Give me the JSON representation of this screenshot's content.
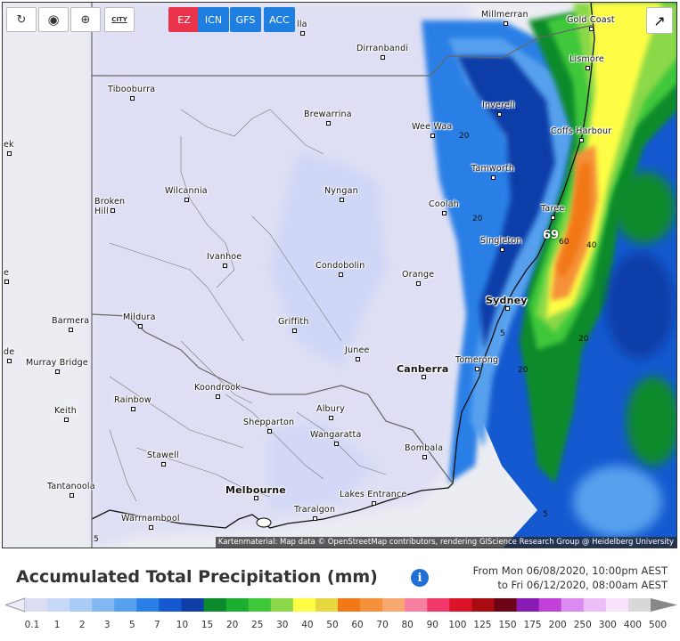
{
  "toolbar": {
    "refresh_icon": "refresh-icon",
    "location_icon": "location-pin-icon",
    "zoom_icon": "zoom-icon",
    "city_toggle_label": "CITY",
    "models": [
      {
        "label": "EZ",
        "color": "#e8334a"
      },
      {
        "label": "ICN",
        "color": "#1e7fe0"
      },
      {
        "label": "GFS",
        "color": "#1e7fe0"
      },
      {
        "label": "ACC",
        "color": "#1e7fe0"
      }
    ],
    "share_icon": "share-icon"
  },
  "map": {
    "cities": [
      {
        "name": "Millmerran"
      },
      {
        "name": "Gold Coast"
      },
      {
        "name": "Dirranbandi"
      },
      {
        "name": "Lismore"
      },
      {
        "name": "Tibooburra"
      },
      {
        "name": "Inverell"
      },
      {
        "name": "Brewarrina"
      },
      {
        "name": "Wee Waa"
      },
      {
        "name": "Coffs Harbour"
      },
      {
        "name": "Tamworth"
      },
      {
        "name": "Wilcannia"
      },
      {
        "name": "Nyngan"
      },
      {
        "name": "Broken Hill"
      },
      {
        "name": "Coolah"
      },
      {
        "name": "Taree"
      },
      {
        "name": "Singleton"
      },
      {
        "name": "Ivanhoe"
      },
      {
        "name": "Condobolin"
      },
      {
        "name": "Orange"
      },
      {
        "name": "Sydney"
      },
      {
        "name": "Mildura"
      },
      {
        "name": "Barmera"
      },
      {
        "name": "Griffith"
      },
      {
        "name": "Junee"
      },
      {
        "name": "Murray Bridge"
      },
      {
        "name": "Tomerong"
      },
      {
        "name": "Canberra"
      },
      {
        "name": "Koondrook"
      },
      {
        "name": "Rainbow"
      },
      {
        "name": "Keith"
      },
      {
        "name": "Albury"
      },
      {
        "name": "Shepparton"
      },
      {
        "name": "Wangaratta"
      },
      {
        "name": "Bombala"
      },
      {
        "name": "Stawell"
      },
      {
        "name": "Tantanoola"
      },
      {
        "name": "Melbourne"
      },
      {
        "name": "Lakes Entrance"
      },
      {
        "name": "Traralgon"
      },
      {
        "name": "Warrnambool"
      },
      {
        "name": "ek"
      },
      {
        "name": "de"
      },
      {
        "name": "e"
      },
      {
        "name": "lla"
      }
    ],
    "contours": [
      "20",
      "20",
      "40",
      "60",
      "20",
      "20",
      "5",
      "5",
      "5",
      "69"
    ],
    "credit": "Kartenmaterial: Map data © OpenStreetMap contributors, rendering GIScience Research Group @ Heidelberg University"
  },
  "legend": {
    "title": "Accumulated Total Precipitation (mm)",
    "date_from": "From Mon 06/08/2020, 10:00pm AEST",
    "date_to": "to Fri 06/12/2020, 08:00am AEST",
    "colors": [
      "#dcdcf2",
      "#c8d8f8",
      "#a8ccf6",
      "#82b8f2",
      "#56a0ee",
      "#2c7fe6",
      "#1459cf",
      "#0d3ea8",
      "#0a8a2a",
      "#1cae2e",
      "#3fc83a",
      "#8bd84a",
      "#fdfd44",
      "#e8d840",
      "#f27818",
      "#f5913a",
      "#f9a870",
      "#f87fa0",
      "#f2386a",
      "#dc1428",
      "#a80c10",
      "#6c0418",
      "#8a1ab4",
      "#c040d8",
      "#da8af0",
      "#ecbef8",
      "#f8e2fc",
      "#d8d8d8"
    ],
    "ticks": [
      "0.1",
      "1",
      "2",
      "3",
      "5",
      "7",
      "10",
      "15",
      "20",
      "25",
      "30",
      "40",
      "50",
      "60",
      "70",
      "80",
      "90",
      "100",
      "125",
      "150",
      "175",
      "200",
      "250",
      "300",
      "400",
      "500"
    ]
  }
}
